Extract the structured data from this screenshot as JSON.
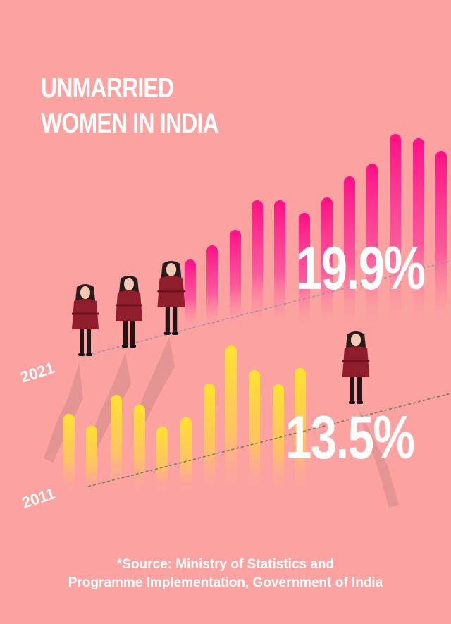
{
  "title": {
    "line1": "UNMARRIED",
    "line2": "WOMEN IN INDIA"
  },
  "source": {
    "line1": "*Source: Ministry of Statistics and",
    "line2": "Programme Implementation, Government of India"
  },
  "colors": {
    "background": "#fca3a1",
    "bars_2021": "#ff1a8c",
    "bars_2011": "#ffd92e",
    "figure_coat": "#8f1d2c"
  },
  "chart_data": {
    "type": "bar",
    "categories": [
      "2011",
      "2021"
    ],
    "values": [
      13.5,
      19.9
    ],
    "value_labels": [
      "13.5%",
      "19.9%"
    ],
    "year_labels": [
      "2011",
      "2021"
    ],
    "unit": "%",
    "ylim": [
      0,
      25
    ],
    "grid": false,
    "legend": "none"
  }
}
